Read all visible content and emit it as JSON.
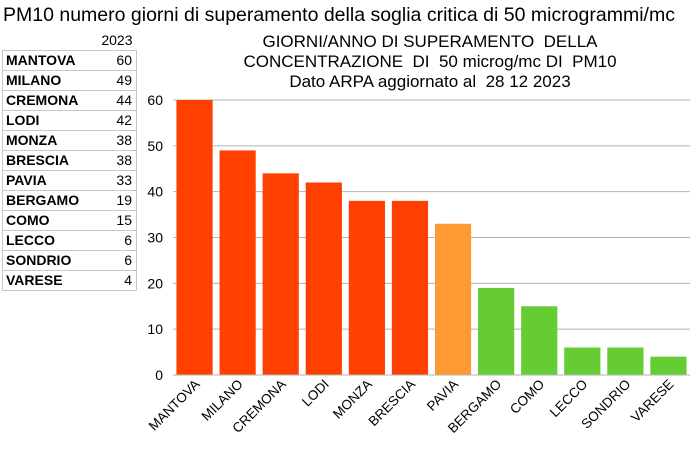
{
  "sheet_title": "PM10 numero giorni di superamento della soglia  critica di 50 microgrammi/mc",
  "table": {
    "year_header": "2023",
    "rows": [
      {
        "city": "MANTOVA",
        "value": "60"
      },
      {
        "city": "MILANO",
        "value": "49"
      },
      {
        "city": "CREMONA",
        "value": "44"
      },
      {
        "city": "LODI",
        "value": "42"
      },
      {
        "city": "MONZA",
        "value": "38"
      },
      {
        "city": "BRESCIA",
        "value": "38"
      },
      {
        "city": "PAVIA",
        "value": "33"
      },
      {
        "city": "BERGAMO",
        "value": "19"
      },
      {
        "city": "COMO",
        "value": "15"
      },
      {
        "city": "LECCO",
        "value": "6"
      },
      {
        "city": "SONDRIO",
        "value": "6"
      },
      {
        "city": "VARESE",
        "value": "4"
      }
    ]
  },
  "chart_data": {
    "type": "bar",
    "title_lines": [
      "GIORNI/ANNO DI SUPERAMENTO  DELLA",
      "CONCENTRAZIONE  DI  50 microg/mc DI  PM10",
      "Dato ARPA aggiornato al  28 12 2023"
    ],
    "categories": [
      "MANTOVA",
      "MILANO",
      "CREMONA",
      "LODI",
      "MONZA",
      "BRESCIA",
      "PAVIA",
      "BERGAMO",
      "COMO",
      "LECCO",
      "SONDRIO",
      "VARESE"
    ],
    "values": [
      60,
      49,
      44,
      42,
      38,
      38,
      33,
      19,
      15,
      6,
      6,
      4
    ],
    "bar_colors": [
      "#ff4000",
      "#ff4000",
      "#ff4000",
      "#ff4000",
      "#ff4000",
      "#ff4000",
      "#ff9933",
      "#66cc33",
      "#66cc33",
      "#66cc33",
      "#66cc33",
      "#66cc33"
    ],
    "ylim": [
      0,
      60
    ],
    "yticks": [
      0,
      10,
      20,
      30,
      40,
      50,
      60
    ],
    "grid": true,
    "legend": "none"
  }
}
